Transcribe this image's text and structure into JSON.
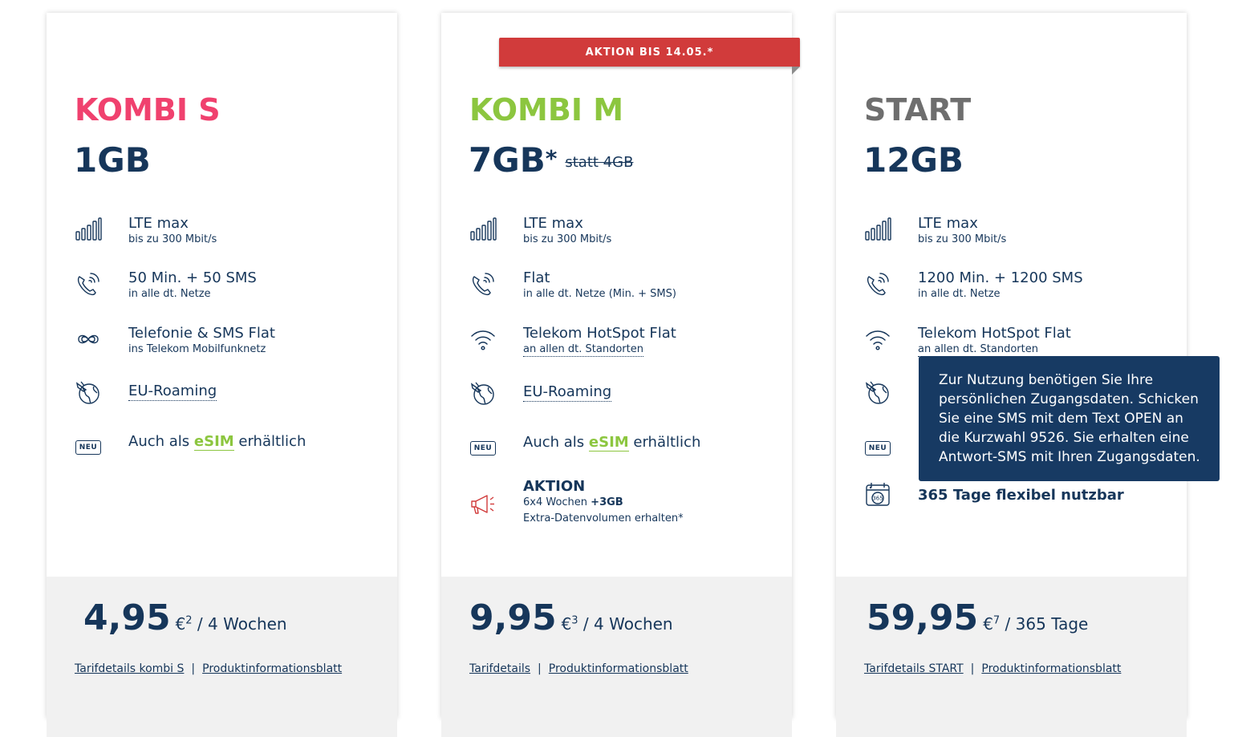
{
  "colors": {
    "kombi_s": "#f0416e",
    "kombi_m": "#8cc63f",
    "start": "#6e6e6e",
    "navy": "#16365a",
    "red": "#d13b3b",
    "tooltip_bg": "#173a63"
  },
  "cards": [
    {
      "name": "KOMBI S",
      "data": "1GB",
      "features": [
        {
          "icon": "signal-bars-icon",
          "title": "LTE max",
          "sub": "bis zu 300 Mbit/s"
        },
        {
          "icon": "phone-call-icon",
          "title": "50 Min. + 50 SMS",
          "sub": "in alle dt. Netze"
        },
        {
          "icon": "infinity-icon",
          "title": "Telefonie & SMS Flat",
          "sub": "ins Telekom Mobilfunknetz"
        },
        {
          "icon": "globe-plane-icon",
          "title": "EU-Roaming"
        },
        {
          "icon": "neu-badge-icon",
          "badge": "NEU",
          "pre": "Auch als ",
          "esim": "eSIM",
          "post": " erhältlich"
        }
      ],
      "price": "4,95",
      "currency": "€",
      "footnote": "2",
      "period": " / 4 Wochen",
      "link1": "Tarifdetails kombi S",
      "sep": "|",
      "link2": "Produktinformationsblatt"
    },
    {
      "ribbon": "AKTION BIS 14.05.*",
      "name": "KOMBI M",
      "data": "7GB",
      "data_mark": "*",
      "data_old": "statt 4GB",
      "features": [
        {
          "icon": "signal-bars-icon",
          "title": "LTE max",
          "sub": "bis zu 300 Mbit/s"
        },
        {
          "icon": "phone-call-icon",
          "title": "Flat",
          "sub": "in alle dt. Netze (Min. + SMS)"
        },
        {
          "icon": "wifi-icon",
          "title": "Telekom HotSpot Flat",
          "sub": "an allen dt. Standorten"
        },
        {
          "icon": "globe-plane-icon",
          "title": "EU-Roaming"
        },
        {
          "icon": "neu-badge-icon",
          "badge": "NEU",
          "pre": "Auch als ",
          "esim": "eSIM",
          "post": " erhältlich"
        },
        {
          "icon": "megaphone-icon",
          "title": "AKTION",
          "sub1": "6x4 Wochen ",
          "sub1_bold": "+3GB",
          "sub2": "Extra-Datenvolumen erhalten*"
        }
      ],
      "price": "9,95",
      "currency": "€",
      "footnote": "3",
      "period": " / 4 Wochen",
      "link1": "Tarifdetails",
      "sep": "|",
      "link2": "Produktinformationsblatt"
    },
    {
      "name": "START",
      "data": "12GB",
      "features": [
        {
          "icon": "signal-bars-icon",
          "title": "LTE max",
          "sub": "bis zu 300 Mbit/s"
        },
        {
          "icon": "phone-call-icon",
          "title": "1200 Min. + 1200 SMS",
          "sub": "in alle dt. Netze"
        },
        {
          "icon": "wifi-icon",
          "title": "Telekom HotSpot Flat",
          "sub": "an allen dt. Standorten"
        },
        {
          "icon": "globe-plane-icon"
        },
        {
          "icon": "neu-badge-icon",
          "badge": "NEU"
        },
        {
          "icon": "calendar-365-icon",
          "badge": "365",
          "title": "365 Tage flexibel nutzbar"
        }
      ],
      "price": "59,95",
      "currency": "€",
      "footnote": "7",
      "period": " / 365 Tage",
      "link1": "Tarifdetails START",
      "sep": "|",
      "link2": "Produktinformationsblatt"
    }
  ],
  "tooltip": {
    "text": "Zur Nutzung benötigen Sie Ihre persönlichen Zugangsdaten. Schicken Sie eine SMS mit dem Text OPEN an die Kurzwahl 9526. Sie erhalten eine Antwort-SMS mit Ihren Zugangsdaten."
  }
}
